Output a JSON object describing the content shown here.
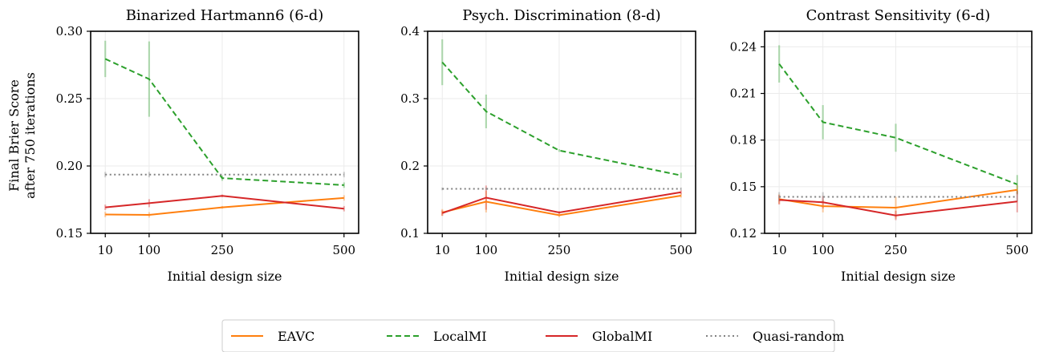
{
  "legend": {
    "position": "bottom-center",
    "entries": [
      {
        "label": "EAVC",
        "color": "#ff7f0e",
        "dash": "solid"
      },
      {
        "label": "LocalMI",
        "color": "#2ca02c",
        "dash": "dashed"
      },
      {
        "label": "GlobalMI",
        "color": "#d62728",
        "dash": "solid"
      },
      {
        "label": "Quasi-random",
        "color": "#808080",
        "dash": "dotted"
      }
    ]
  },
  "shared_ylabel": [
    "Final Brier Score",
    "after 750 iterations"
  ],
  "chart_data": [
    {
      "type": "line",
      "title": "Binarized Hartmann6 (6-d)",
      "xlabel": "Initial design size",
      "ylabel": "Final Brier Score after 750 iterations",
      "x": [
        10,
        100,
        250,
        500
      ],
      "xticks": [
        10,
        100,
        250,
        500
      ],
      "xlim": [
        -20,
        530
      ],
      "ylim": [
        0.15,
        0.3
      ],
      "yticks": [
        0.15,
        0.2,
        0.25,
        0.3
      ],
      "ytick_labels": [
        "0.15",
        "0.20",
        "0.25",
        "0.30"
      ],
      "grid": true,
      "series": [
        {
          "name": "EAVC",
          "values": [
            0.164,
            0.1637,
            0.1693,
            0.1763
          ],
          "err": [
            0.002,
            0.002,
            0.001,
            0.002
          ]
        },
        {
          "name": "LocalMI",
          "values": [
            0.2795,
            0.2645,
            0.191,
            0.1858
          ],
          "err": [
            0.0135,
            0.028,
            0.002,
            0.002
          ]
        },
        {
          "name": "GlobalMI",
          "values": [
            0.1693,
            0.1724,
            0.1778,
            0.1683
          ],
          "err": [
            0.002,
            0.003,
            0.001,
            0.002
          ]
        },
        {
          "name": "Quasi-random",
          "values": [
            0.1936,
            0.1936,
            0.1936,
            0.1936
          ],
          "err": [
            0.002,
            0.002,
            0.0,
            0.002
          ]
        }
      ]
    },
    {
      "type": "line",
      "title": "Psych. Discrimination (8-d)",
      "xlabel": "Initial design size",
      "ylabel": "",
      "x": [
        10,
        100,
        250,
        500
      ],
      "xticks": [
        10,
        100,
        250,
        500
      ],
      "xlim": [
        -20,
        530
      ],
      "ylim": [
        0.1,
        0.4
      ],
      "yticks": [
        0.1,
        0.2,
        0.3,
        0.4
      ],
      "ytick_labels": [
        "0.1",
        "0.2",
        "0.3",
        "0.4"
      ],
      "grid": true,
      "series": [
        {
          "name": "EAVC",
          "values": [
            0.131,
            0.147,
            0.127,
            0.156
          ],
          "err": [
            0.005,
            0.016,
            0.003,
            0.003
          ]
        },
        {
          "name": "LocalMI",
          "values": [
            0.354,
            0.281,
            0.223,
            0.186
          ],
          "err": [
            0.034,
            0.025,
            0.002,
            0.004
          ]
        },
        {
          "name": "GlobalMI",
          "values": [
            0.13,
            0.153,
            0.131,
            0.161
          ],
          "err": [
            0.004,
            0.018,
            0.002,
            0.003
          ]
        },
        {
          "name": "Quasi-random",
          "values": [
            0.166,
            0.166,
            0.166,
            0.166
          ],
          "err": [
            0.002,
            0.002,
            0.0,
            0.002
          ]
        }
      ]
    },
    {
      "type": "line",
      "title": "Contrast Sensitivity (6-d)",
      "xlabel": "Initial design size",
      "ylabel": "",
      "x": [
        10,
        100,
        250,
        500
      ],
      "xticks": [
        10,
        100,
        250,
        500
      ],
      "xlim": [
        -20,
        530
      ],
      "ylim": [
        0.12,
        0.25
      ],
      "yticks": [
        0.12,
        0.15,
        0.18,
        0.21,
        0.24
      ],
      "ytick_labels": [
        "0.12",
        "0.15",
        "0.18",
        "0.21",
        "0.24"
      ],
      "grid": true,
      "series": [
        {
          "name": "EAVC",
          "values": [
            0.142,
            0.1375,
            0.1365,
            0.148
          ],
          "err": [
            0.003,
            0.004,
            0.007,
            0.003
          ]
        },
        {
          "name": "LocalMI",
          "values": [
            0.229,
            0.1915,
            0.1815,
            0.1515
          ],
          "err": [
            0.012,
            0.011,
            0.009,
            0.006
          ]
        },
        {
          "name": "GlobalMI",
          "values": [
            0.1415,
            0.14,
            0.1315,
            0.1405
          ],
          "err": [
            0.003,
            0.004,
            0.003,
            0.007
          ]
        },
        {
          "name": "Quasi-random",
          "values": [
            0.1435,
            0.1435,
            0.1435,
            0.1435
          ],
          "err": [
            0.003,
            0.003,
            0.0,
            0.003
          ]
        }
      ]
    }
  ]
}
